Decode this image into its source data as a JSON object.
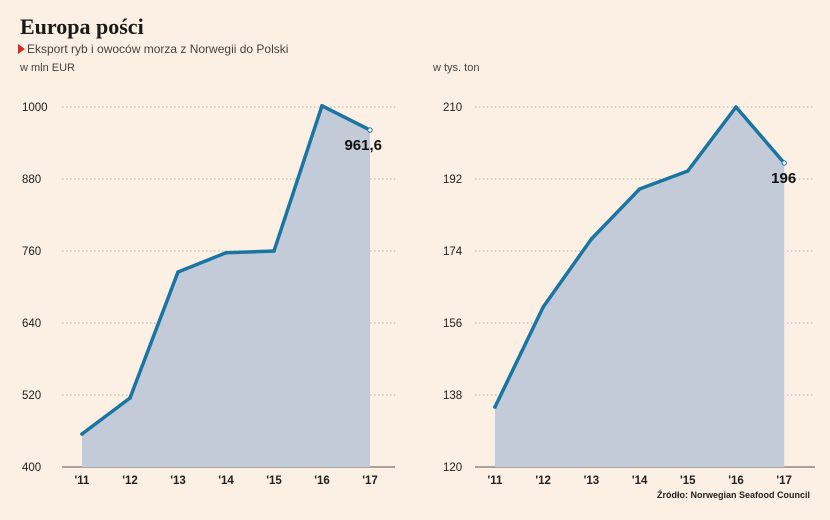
{
  "header": {
    "title": "Europa pości",
    "subtitle": "Eksport ryb i owoców morza z Norwegii do Polski"
  },
  "source": "Źródło: Norwegian Seafood Council",
  "colors": {
    "line": "#1b75a3",
    "area": "#c3cbd9",
    "background": "#fbf0e3",
    "marker": "#d62b1f"
  },
  "chart_data": [
    {
      "type": "area",
      "ylabel": "w mln EUR",
      "categories": [
        "'11",
        "'12",
        "'13",
        "'14",
        "'15",
        "'16",
        "'17"
      ],
      "values": [
        455,
        515,
        725,
        757,
        760,
        1002,
        961.6
      ],
      "ylim": [
        400,
        1000
      ],
      "yticks": [
        400,
        520,
        640,
        760,
        880,
        1000
      ],
      "last_label": "961,6",
      "grid": true
    },
    {
      "type": "area",
      "ylabel": "w tys. ton",
      "categories": [
        "'11",
        "'12",
        "'13",
        "'14",
        "'15",
        "'16",
        "'17"
      ],
      "values": [
        135,
        160,
        177,
        189.5,
        194,
        210,
        196
      ],
      "ylim": [
        120,
        210
      ],
      "yticks": [
        120,
        138,
        156,
        174,
        192,
        210
      ],
      "last_label": "196",
      "grid": true
    }
  ]
}
